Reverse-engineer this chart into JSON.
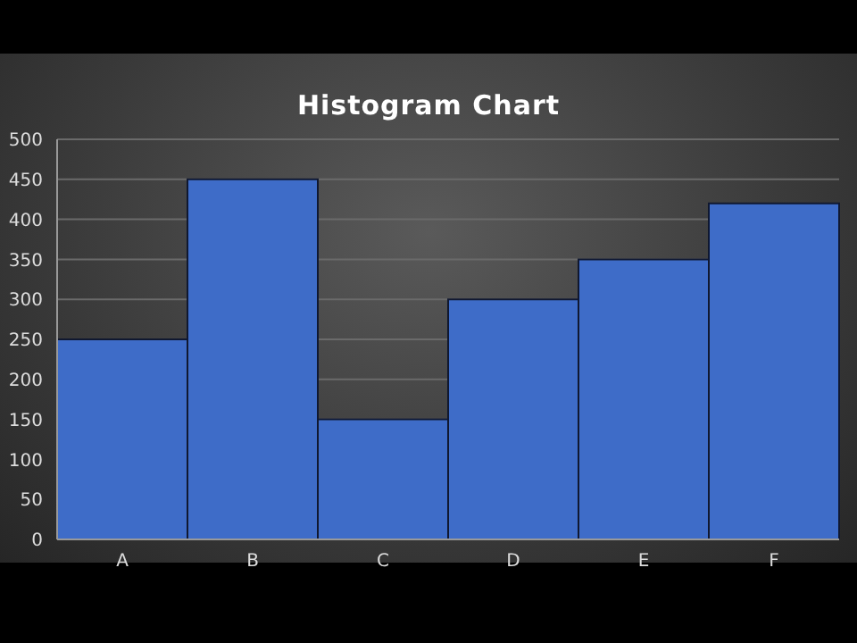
{
  "chart_data": {
    "type": "bar",
    "title": "Histogram Chart",
    "categories": [
      "A",
      "B",
      "C",
      "D",
      "E",
      "F"
    ],
    "values": [
      250,
      450,
      150,
      300,
      350,
      420
    ],
    "color": "#3e6cc8",
    "ylim": [
      0,
      500
    ],
    "yticks": [
      0,
      50,
      100,
      150,
      200,
      250,
      300,
      350,
      400,
      450,
      500
    ],
    "grid": "y"
  }
}
